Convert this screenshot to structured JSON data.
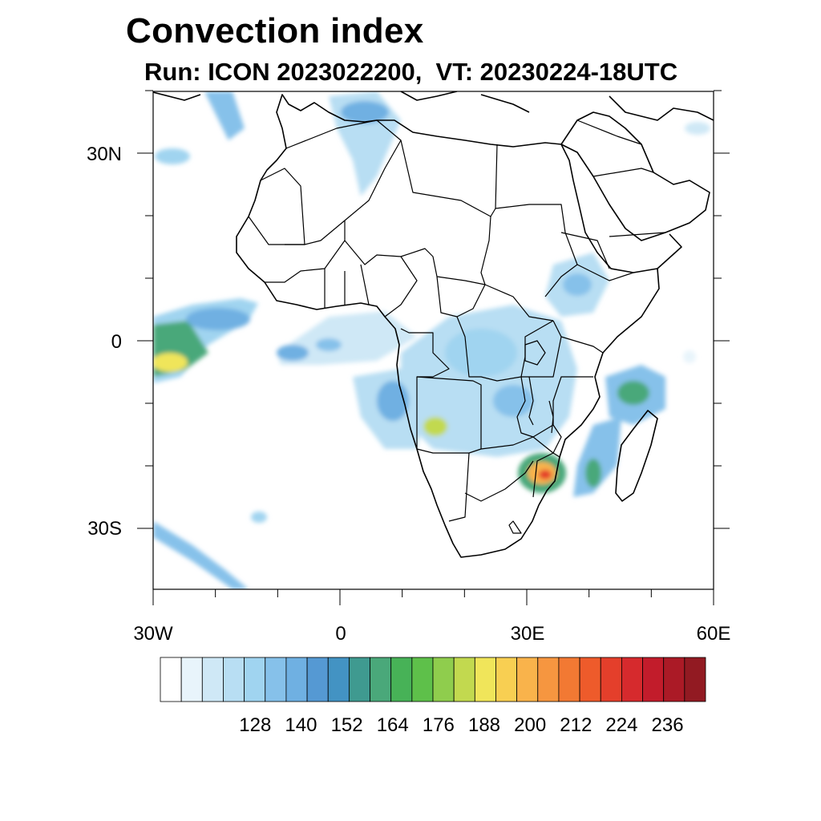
{
  "title": "Convection index",
  "subtitle": "Run: ICON 2023022200,  VT: 20230224-18UTC",
  "axes": {
    "lon_labels": [
      "30W",
      "0",
      "30E",
      "60E"
    ],
    "lat_labels": [
      "30N",
      "0",
      "30S"
    ]
  },
  "colorbar": {
    "tick_labels": [
      "128",
      "140",
      "152",
      "164",
      "176",
      "188",
      "200",
      "212",
      "224",
      "236"
    ],
    "colors": [
      "#ffffff",
      "#e8f4fb",
      "#cfe8f6",
      "#b8def3",
      "#a0d4f0",
      "#86c1ea",
      "#6fb0e2",
      "#5599d3",
      "#4393c3",
      "#3f9a90",
      "#4aa87a",
      "#47b257",
      "#5ec04a",
      "#8fcd4d",
      "#c2d94f",
      "#f0e55a",
      "#f8cf52",
      "#f9b34b",
      "#f69640",
      "#f27933",
      "#ee5b2b",
      "#e43f2b",
      "#d62a2d",
      "#c21c2b",
      "#ab1a26",
      "#921a22"
    ]
  }
}
